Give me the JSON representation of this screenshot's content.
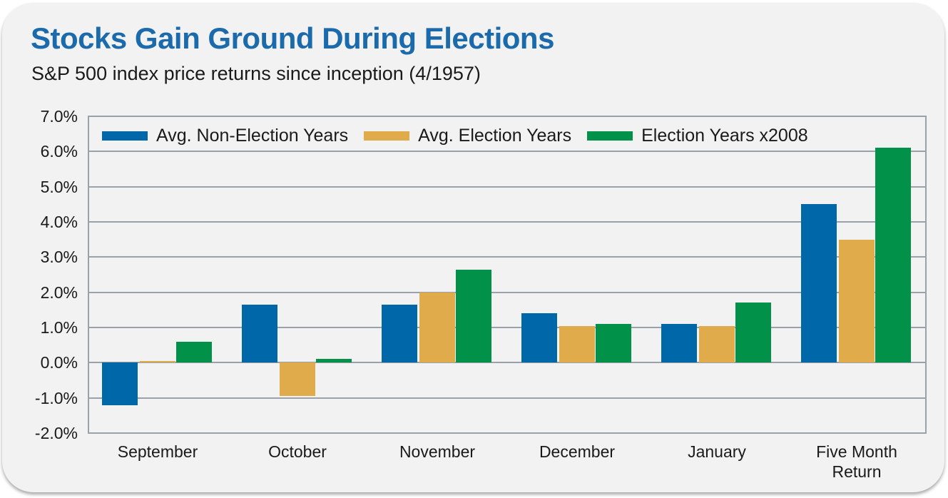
{
  "header": {
    "title": "Stocks Gain Ground During Elections",
    "subtitle": "S&P 500 index price returns since inception (4/1957)"
  },
  "colors": {
    "title_text": "#1B6AAC",
    "body_text": "#1A1A1A",
    "card_background": "#F2F2F2",
    "page_background": "#FFFFFF",
    "gridline": "#9BA1A9"
  },
  "chart_data": {
    "type": "bar",
    "title": "Stocks Gain Ground During Elections",
    "subtitle": "S&P 500 index price returns since inception (4/1957)",
    "categories": [
      "September",
      "October",
      "November",
      "December",
      "January",
      "Five Month Return"
    ],
    "series": [
      {
        "name": "Avg. Non-Election Years",
        "color": "#0068A8",
        "values": [
          -1.2,
          1.65,
          1.65,
          1.4,
          1.1,
          4.5
        ]
      },
      {
        "name": "Avg. Election Years",
        "color": "#DFAB4B",
        "values": [
          0.05,
          -0.95,
          2.0,
          1.05,
          1.05,
          3.5
        ]
      },
      {
        "name": "Election Years x2008",
        "color": "#029149",
        "values": [
          0.6,
          0.1,
          2.65,
          1.1,
          1.7,
          6.1
        ]
      }
    ],
    "ylim": [
      -2,
      7
    ],
    "yticks": [
      7,
      6,
      5,
      4,
      3,
      2,
      1,
      0,
      -1,
      -2
    ],
    "ytick_labels": [
      "7.0%",
      "6.0%",
      "5.0%",
      "4.0%",
      "3.0%",
      "2.0%",
      "1.0%",
      "0.0%",
      "-1.0%",
      "-2.0%"
    ],
    "xlabel": "",
    "ylabel": "",
    "grid": true,
    "legend_position": "top-left-inside"
  }
}
